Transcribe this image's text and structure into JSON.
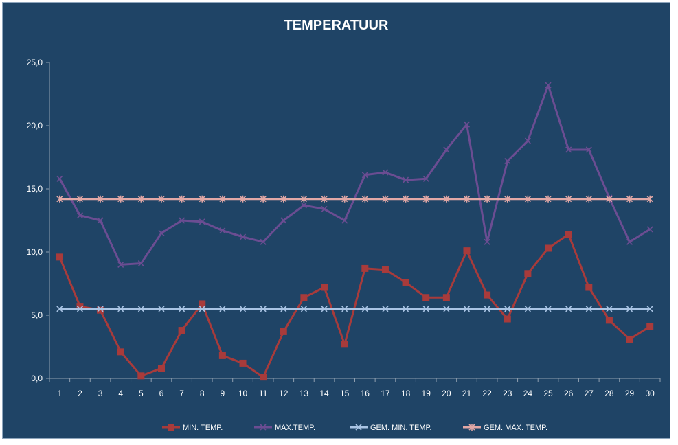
{
  "chart_data": {
    "type": "line",
    "title": "TEMPERATUUR",
    "x": [
      1,
      2,
      3,
      4,
      5,
      6,
      7,
      8,
      9,
      10,
      11,
      12,
      13,
      14,
      15,
      16,
      17,
      18,
      19,
      20,
      21,
      22,
      23,
      24,
      25,
      26,
      27,
      28,
      29,
      30
    ],
    "ylim": [
      0,
      25
    ],
    "yticks": [
      "0,0",
      "5,0",
      "10,0",
      "15,0",
      "20,0",
      "25,0"
    ],
    "grid": false,
    "legend_position": "bottom",
    "series": [
      {
        "name": "MIN. TEMP.",
        "color": "#a83b3b",
        "marker": "square",
        "values": [
          9.6,
          5.7,
          5.4,
          2.1,
          0.2,
          0.8,
          3.8,
          5.9,
          1.8,
          1.2,
          0.1,
          3.7,
          6.4,
          7.2,
          2.7,
          8.7,
          8.6,
          7.6,
          6.4,
          6.4,
          10.1,
          6.6,
          4.7,
          8.3,
          10.3,
          11.4,
          7.2,
          4.6,
          3.1,
          4.1
        ]
      },
      {
        "name": "MAX.TEMP.",
        "color": "#6b4d92",
        "marker": "x",
        "values": [
          15.8,
          12.9,
          12.5,
          9.0,
          9.1,
          11.5,
          12.5,
          12.4,
          11.7,
          11.2,
          10.8,
          12.5,
          13.7,
          13.4,
          12.5,
          16.1,
          16.3,
          15.7,
          15.8,
          18.1,
          20.1,
          10.8,
          17.2,
          18.8,
          23.2,
          18.1,
          18.1,
          14.3,
          10.8,
          11.8
        ]
      },
      {
        "name": "GEM. MIN. TEMP.",
        "color": "#a9c4e4",
        "marker": "x",
        "values": [
          5.5,
          5.5,
          5.5,
          5.5,
          5.5,
          5.5,
          5.5,
          5.5,
          5.5,
          5.5,
          5.5,
          5.5,
          5.5,
          5.5,
          5.5,
          5.5,
          5.5,
          5.5,
          5.5,
          5.5,
          5.5,
          5.5,
          5.5,
          5.5,
          5.5,
          5.5,
          5.5,
          5.5,
          5.5,
          5.5
        ]
      },
      {
        "name": "GEM. MAX. TEMP.",
        "color": "#e2a8a6",
        "marker": "star",
        "values": [
          14.2,
          14.2,
          14.2,
          14.2,
          14.2,
          14.2,
          14.2,
          14.2,
          14.2,
          14.2,
          14.2,
          14.2,
          14.2,
          14.2,
          14.2,
          14.2,
          14.2,
          14.2,
          14.2,
          14.2,
          14.2,
          14.2,
          14.2,
          14.2,
          14.2,
          14.2,
          14.2,
          14.2,
          14.2,
          14.2
        ]
      }
    ]
  }
}
